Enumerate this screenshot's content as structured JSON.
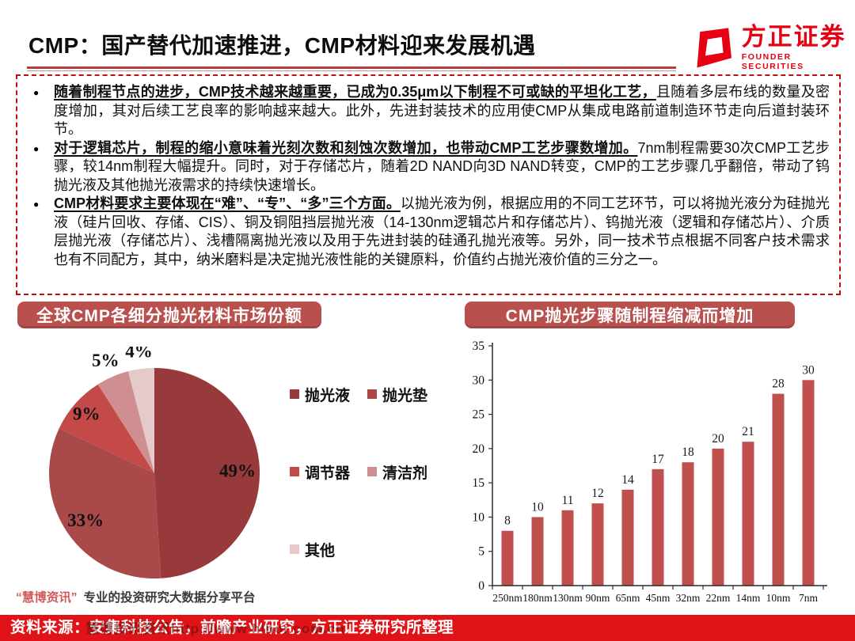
{
  "header": {
    "title": "CMP：国产替代加速推进，CMP材料迎来发展机遇",
    "logo_cn": "方正证券",
    "logo_en": "FOUNDER SECURITIES",
    "logo_color": "#e60012",
    "underline_color": "#ad4240"
  },
  "bullet_box": {
    "border_color": "#c00d0d",
    "bullets": [
      {
        "lead": "随着制程节点的进步，CMP技术越来越重要，已成为0.35μm以下制程不可或缺的平坦化工艺，",
        "body": "且随着多层布线的数量及密度增加，其对后续工艺良率的影响越来越大。此外，先进封装技术的应用使CMP从集成电路前道制造环节走向后道封装环节。"
      },
      {
        "lead": "对于逻辑芯片，制程的缩小意味着光刻次数和刻蚀次数增加，也带动CMP工艺步骤数增加。",
        "body": "7nm制程需要30次CMP工艺步骤，较14nm制程大幅提升。同时，对于存储芯片，随着2D NAND向3D NAND转变，CMP的工艺步骤几乎翻倍，带动了钨抛光液及其他抛光液需求的持续快速增长。"
      },
      {
        "lead": "CMP材料要求主要体现在“难”、“专”、“多”三个方面。",
        "body": "以抛光液为例，根据应用的不同工艺环节，可以将抛光液分为硅抛光液（硅片回收、存储、CIS）、铜及铜阻挡层抛光液（14-130nm逻辑芯片和存储芯片）、钨抛光液（逻辑和存储芯片）、介质层抛光液（存储芯片）、浅槽隔离抛光液以及用于先进封装的硅通孔抛光液等。另外，同一技术节点根据不同客户技术需求也有不同配方，其中，纳米磨料是决定抛光液性能的关键原料，价值约占抛光液价值的三分之一。"
      }
    ]
  },
  "sections": {
    "left_title": "全球CMP各细分抛光材料市场份额",
    "right_title": "CMP抛光步骤随制程缩减而增加",
    "header_bg": "#b9504d"
  },
  "chart_data": [
    {
      "type": "pie",
      "title": "全球CMP各细分抛光材料市场份额",
      "label_format": "percent",
      "legend_position": "right",
      "slices": [
        {
          "label": "抛光液",
          "value": 49,
          "color": "#98393b"
        },
        {
          "label": "抛光垫",
          "value": 33,
          "color": "#a94949"
        },
        {
          "label": "调节器",
          "value": 9,
          "color": "#c34a47"
        },
        {
          "label": "清洁剂",
          "value": 5,
          "color": "#cf8f91"
        },
        {
          "label": "其他",
          "value": 4,
          "color": "#e5c9cb"
        }
      ]
    },
    {
      "type": "bar",
      "title": "CMP抛光步骤随制程缩减而增加",
      "categories": [
        "250nm",
        "180nm",
        "130nm",
        "90nm",
        "65nm",
        "45nm",
        "32nm",
        "22nm",
        "14nm",
        "10nm",
        "7nm"
      ],
      "values": [
        8,
        10,
        11,
        12,
        14,
        17,
        18,
        20,
        21,
        28,
        30
      ],
      "ylim": [
        0,
        35
      ],
      "ytick_step": 5,
      "bar_color": "#c0504d",
      "grid": false,
      "data_labels": true,
      "xlabel": "",
      "ylabel": ""
    }
  ],
  "watermark": {
    "brand": "“慧博资讯”",
    "tagline": "专业的投资研究大数据分享平台"
  },
  "footer": {
    "source": "资料来源：安集科技公告，前瞻产业研究，方正证券研究所整理",
    "bg": "#e01418",
    "overlay_watermark": "慧博投研资讯http://www.hibor.com.cn"
  }
}
